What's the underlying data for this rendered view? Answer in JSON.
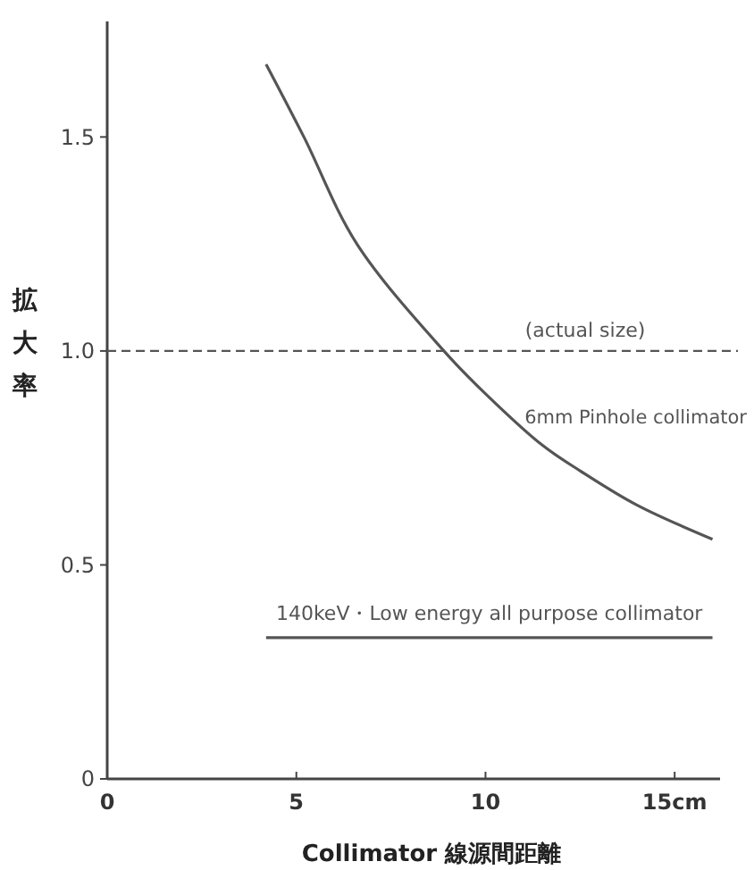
{
  "chart_data": {
    "type": "line",
    "xlabel": "Collimator 線源間距離",
    "ylabel": "拡大率",
    "xlim": [
      0,
      16.2
    ],
    "xticks": [
      0,
      5,
      10,
      {
        "value": 15,
        "label": "15cm"
      }
    ],
    "ylim": [
      0,
      1.77
    ],
    "yticks": [
      0,
      0.5,
      {
        "value": 1,
        "label": "1.0"
      },
      1.5
    ],
    "series": [
      {
        "name": "6mm Pinhole collimator",
        "color": "#555555",
        "x": [
          4.2,
          5.2,
          6.6,
          8.9,
          10,
          11.5,
          12.5,
          14,
          16
        ],
        "values": [
          1.67,
          1.5,
          1.25,
          1,
          0.9,
          0.78,
          0.72,
          0.64,
          0.56
        ]
      },
      {
        "name": "140keV・Low energy all purpose collimator",
        "color": "#555555",
        "x": [
          4.2,
          16
        ],
        "values": [
          0.33,
          0.33
        ]
      }
    ],
    "ref_lines": [
      {
        "axis": "y",
        "value": 1,
        "label": "(actual size)",
        "line_style": "dashed",
        "color": "#555555"
      }
    ],
    "grid": false,
    "legend": false,
    "marker": "none",
    "line_style": "solid"
  }
}
